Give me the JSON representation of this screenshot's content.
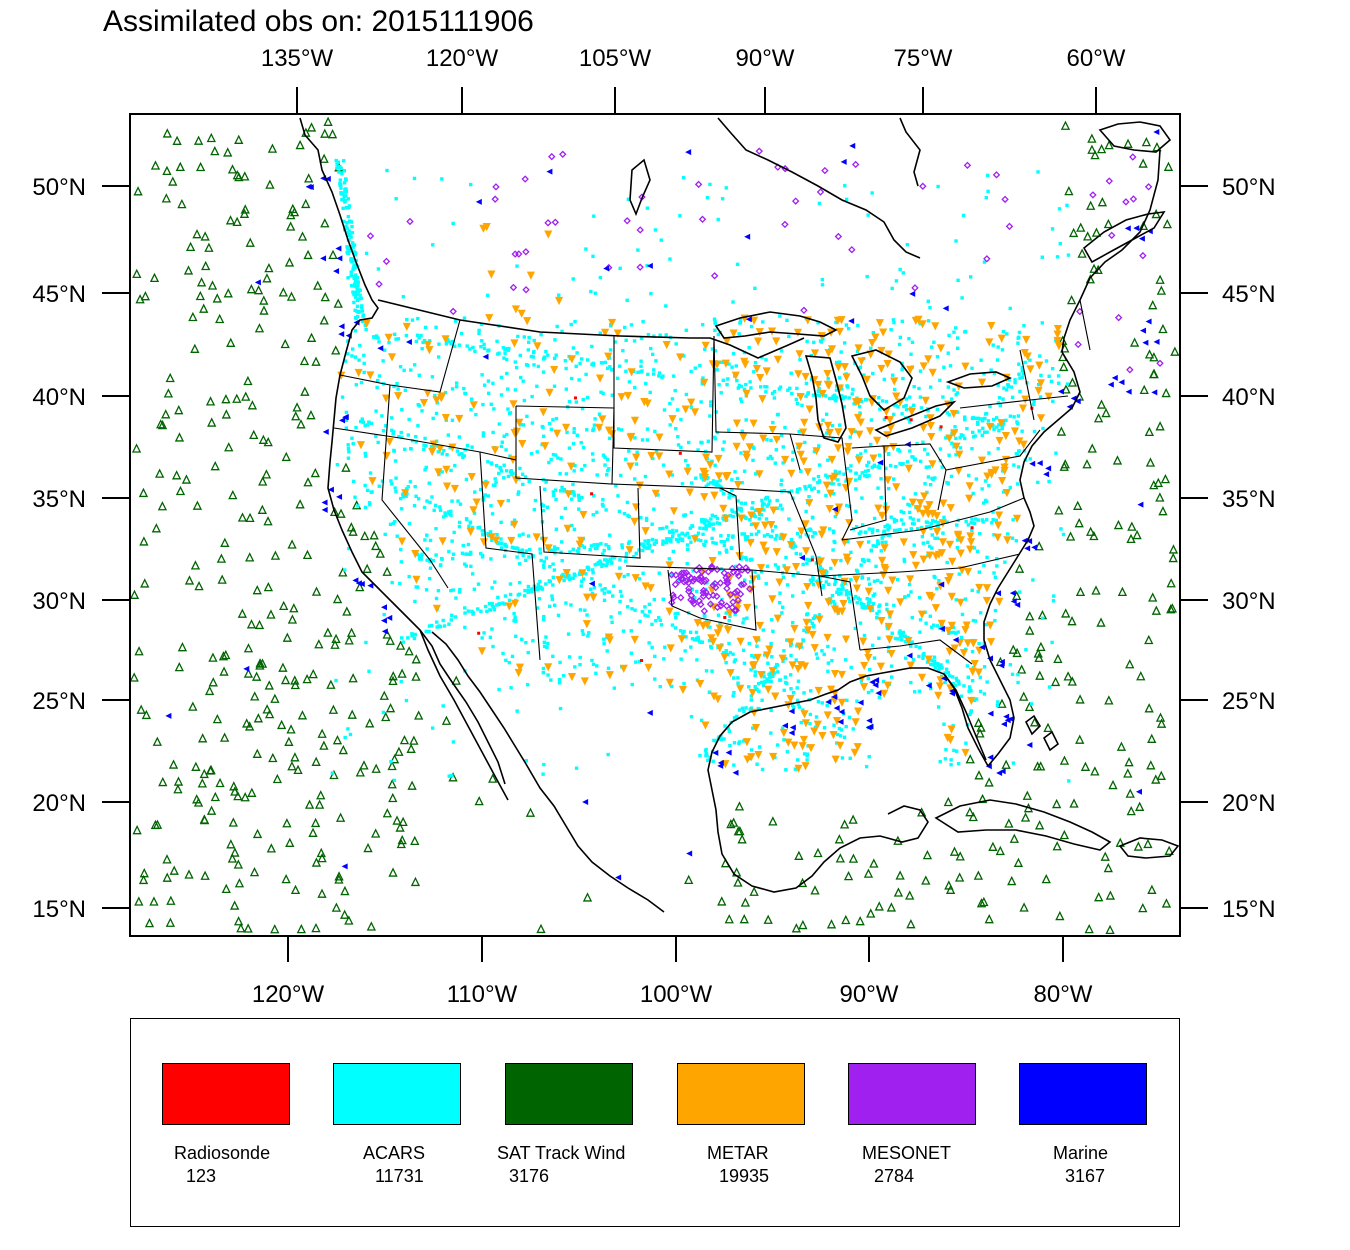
{
  "title": "Assimilated obs on: 2015111906",
  "map": {
    "top_lon_labels": [
      "135°W",
      "120°W",
      "105°W",
      "90°W",
      "75°W",
      "60°W"
    ],
    "bottom_lon_labels": [
      "120°W",
      "110°W",
      "100°W",
      "90°W",
      "80°W"
    ],
    "lat_labels": [
      "50°N",
      "45°N",
      "40°N",
      "35°N",
      "30°N",
      "25°N",
      "20°N",
      "15°N"
    ],
    "extent": {
      "lon_min": -128.0,
      "lon_max": -74.0,
      "lat_min": 13.7,
      "lat_max": 53.5
    }
  },
  "legend": {
    "items": [
      {
        "name": "Radiosonde",
        "count": "123",
        "color": "#ff0000"
      },
      {
        "name": "ACARS",
        "count": "11731",
        "color": "#00ffff"
      },
      {
        "name": "SAT Track Wind",
        "count": "3176",
        "color": "#006400"
      },
      {
        "name": "METAR",
        "count": "19935",
        "color": "#ffa500"
      },
      {
        "name": "MESONET",
        "count": "2784",
        "color": "#a020f0"
      },
      {
        "name": "Marine",
        "count": "3167",
        "color": "#0000ff"
      }
    ]
  }
}
